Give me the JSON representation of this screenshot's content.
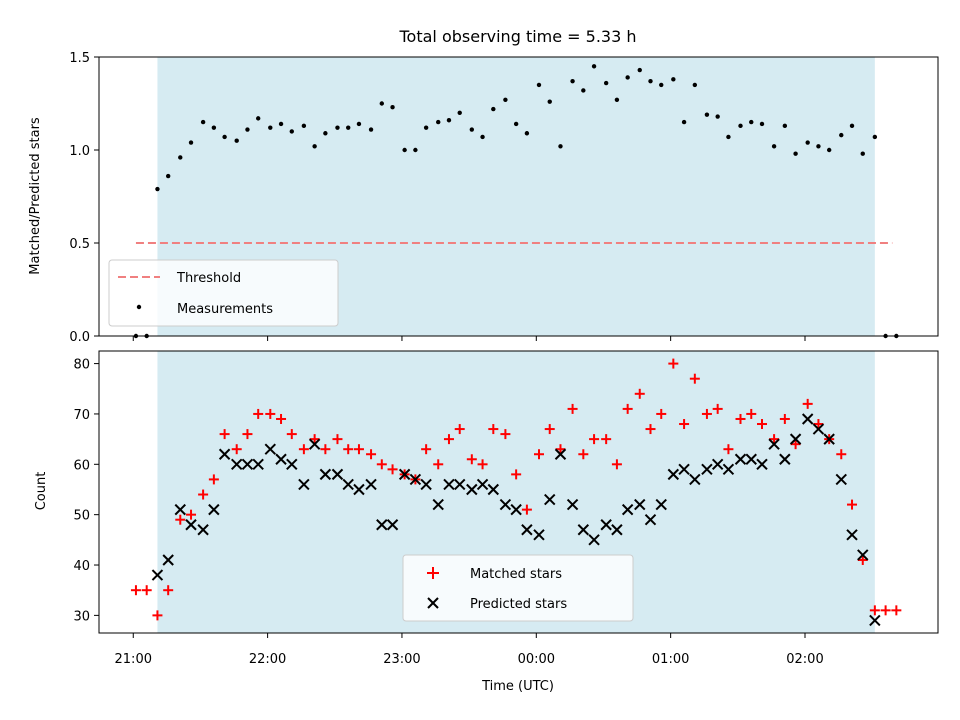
{
  "chart_data": [
    {
      "type": "scatter",
      "title": "Total observing time = 5.33 h",
      "ylabel": "Matched/Predicted stars",
      "xlabel": "",
      "xlim": [
        20.745,
        26.99
      ],
      "ylim": [
        0,
        1.5
      ],
      "yticks": [
        0.0,
        0.5,
        1.0,
        1.5
      ],
      "ytick_labels": [
        "0.0",
        "0.5",
        "1.0",
        "1.5"
      ],
      "observing_window": [
        21.18,
        26.52
      ],
      "threshold": {
        "name": "Threshold",
        "value": 0.5,
        "x_range": [
          21.02,
          26.65
        ],
        "color": "#f08080"
      },
      "legend": {
        "position": "lower-left",
        "entries": [
          "Threshold",
          "Measurements"
        ]
      },
      "series": [
        {
          "name": "Measurements",
          "color": "#000000",
          "x": [
            21.02,
            21.1,
            21.18,
            21.26,
            21.35,
            21.43,
            21.52,
            21.6,
            21.68,
            21.77,
            21.85,
            21.93,
            22.02,
            22.1,
            22.18,
            22.27,
            22.35,
            22.43,
            22.52,
            22.6,
            22.68,
            22.77,
            22.85,
            22.93,
            23.02,
            23.1,
            23.18,
            23.27,
            23.35,
            23.43,
            23.52,
            23.6,
            23.68,
            23.77,
            23.85,
            23.93,
            24.02,
            24.1,
            24.18,
            24.27,
            24.35,
            24.43,
            24.52,
            24.6,
            24.68,
            24.77,
            24.85,
            24.93,
            25.02,
            25.1,
            25.18,
            25.27,
            25.35,
            25.43,
            25.52,
            25.6,
            25.68,
            25.77,
            25.85,
            25.93,
            26.02,
            26.1,
            26.18,
            26.27,
            26.35,
            26.43,
            26.52,
            26.6,
            26.68
          ],
          "y": [
            0.0,
            0.0,
            0.79,
            0.86,
            0.96,
            1.04,
            1.15,
            1.12,
            1.07,
            1.05,
            1.11,
            1.17,
            1.12,
            1.14,
            1.1,
            1.13,
            1.02,
            1.09,
            1.12,
            1.12,
            1.14,
            1.11,
            1.25,
            1.23,
            1.0,
            1.0,
            1.12,
            1.15,
            1.16,
            1.2,
            1.11,
            1.07,
            1.22,
            1.27,
            1.14,
            1.09,
            1.35,
            1.26,
            1.02,
            1.37,
            1.32,
            1.45,
            1.36,
            1.27,
            1.39,
            1.43,
            1.37,
            1.35,
            1.38,
            1.15,
            1.35,
            1.19,
            1.18,
            1.07,
            1.13,
            1.15,
            1.14,
            1.02,
            1.13,
            0.98,
            1.04,
            1.02,
            1.0,
            1.08,
            1.13,
            0.98,
            1.07,
            0.0,
            0.0
          ]
        }
      ]
    },
    {
      "type": "scatter",
      "title": "",
      "xlabel": "Time (UTC)",
      "ylabel": "Count",
      "xlim": [
        20.745,
        26.99
      ],
      "ylim": [
        26.5,
        82.5
      ],
      "xticks": [
        21,
        22,
        23,
        24,
        25,
        26
      ],
      "xtick_labels": [
        "21:00",
        "22:00",
        "23:00",
        "00:00",
        "01:00",
        "02:00"
      ],
      "yticks": [
        30,
        40,
        50,
        60,
        70,
        80
      ],
      "ytick_labels": [
        "30",
        "40",
        "50",
        "60",
        "70",
        "80"
      ],
      "observing_window": [
        21.18,
        26.52
      ],
      "legend": {
        "position": "lower-center",
        "entries": [
          "Matched stars",
          "Predicted stars"
        ]
      },
      "x": [
        21.02,
        21.1,
        21.18,
        21.26,
        21.35,
        21.43,
        21.52,
        21.6,
        21.68,
        21.77,
        21.85,
        21.93,
        22.02,
        22.1,
        22.18,
        22.27,
        22.35,
        22.43,
        22.52,
        22.6,
        22.68,
        22.77,
        22.85,
        22.93,
        23.02,
        23.1,
        23.18,
        23.27,
        23.35,
        23.43,
        23.52,
        23.6,
        23.68,
        23.77,
        23.85,
        23.93,
        24.02,
        24.1,
        24.18,
        24.27,
        24.35,
        24.43,
        24.52,
        24.6,
        24.68,
        24.77,
        24.85,
        24.93,
        25.02,
        25.1,
        25.18,
        25.27,
        25.35,
        25.43,
        25.52,
        25.6,
        25.68,
        25.77,
        25.85,
        25.93,
        26.02,
        26.1,
        26.18,
        26.27,
        26.35,
        26.43,
        26.52,
        26.6,
        26.68
      ],
      "series": [
        {
          "name": "Matched stars",
          "color": "#ff0000",
          "marker": "plus",
          "values": [
            35,
            35,
            30,
            35,
            49,
            50,
            54,
            57,
            66,
            63,
            66,
            70,
            70,
            69,
            66,
            63,
            65,
            63,
            65,
            63,
            63,
            62,
            60,
            59,
            58,
            57,
            63,
            60,
            65,
            67,
            61,
            60,
            67,
            66,
            58,
            51,
            62,
            67,
            63,
            71,
            62,
            65,
            65,
            60,
            71,
            74,
            67,
            70,
            80,
            68,
            77,
            70,
            71,
            63,
            69,
            70,
            68,
            65,
            69,
            64,
            72,
            68,
            65,
            62,
            52,
            41,
            31,
            31,
            31
          ]
        },
        {
          "name": "Predicted stars",
          "color": "#000000",
          "marker": "x",
          "values": [
            null,
            null,
            38,
            41,
            51,
            48,
            47,
            51,
            62,
            60,
            60,
            60,
            63,
            61,
            60,
            56,
            64,
            58,
            58,
            56,
            55,
            56,
            48,
            48,
            58,
            57,
            56,
            52,
            56,
            56,
            55,
            56,
            55,
            52,
            51,
            47,
            46,
            53,
            62,
            52,
            47,
            45,
            48,
            47,
            51,
            52,
            49,
            52,
            58,
            59,
            57,
            59,
            60,
            59,
            61,
            61,
            60,
            64,
            61,
            65,
            69,
            67,
            65,
            57,
            46,
            42,
            29,
            null,
            null
          ]
        }
      ]
    }
  ]
}
